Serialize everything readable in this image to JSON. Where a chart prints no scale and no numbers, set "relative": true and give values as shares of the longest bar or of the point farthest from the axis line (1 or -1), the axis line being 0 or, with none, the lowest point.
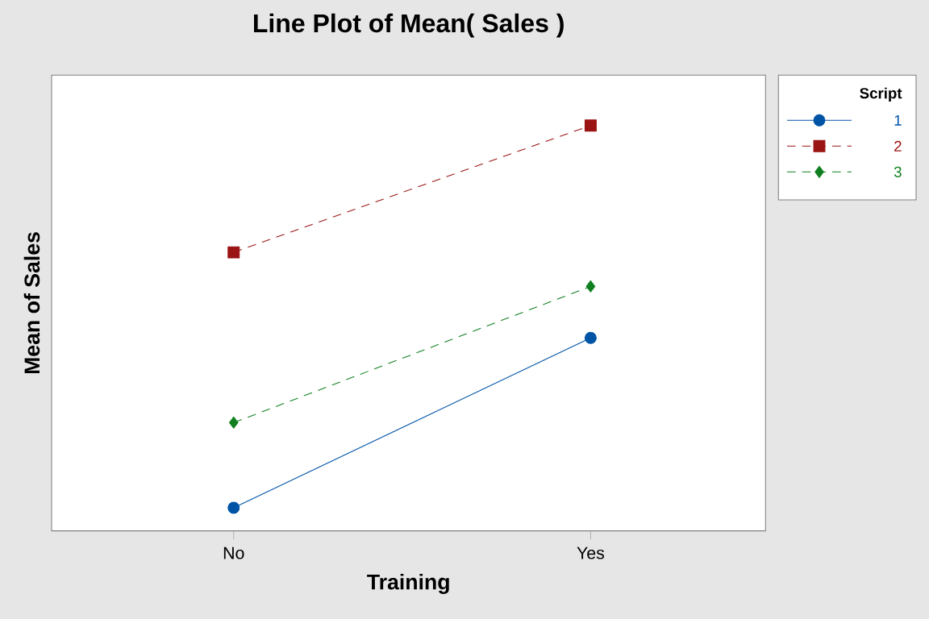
{
  "chart_data": {
    "type": "line",
    "title": "Line Plot of Mean( Sales )",
    "xlabel": "Training",
    "ylabel": "Mean of Sales",
    "legend_title": "Script",
    "categories": [
      "No",
      "Yes"
    ],
    "relative": true,
    "legend": "top right",
    "grid": false,
    "series": [
      {
        "name": "1",
        "color": "#0054a6",
        "values": [
          0.057,
          0.476
        ],
        "marker": "circle",
        "line_style": "solid"
      },
      {
        "name": "2",
        "color": "#9b1414",
        "values": [
          0.687,
          1
        ],
        "marker": "square",
        "line_style": "dashed"
      },
      {
        "name": "3",
        "color": "#0f7f1f",
        "values": [
          0.267,
          0.603
        ],
        "marker": "diamond",
        "line_style": "dashed"
      }
    ]
  }
}
